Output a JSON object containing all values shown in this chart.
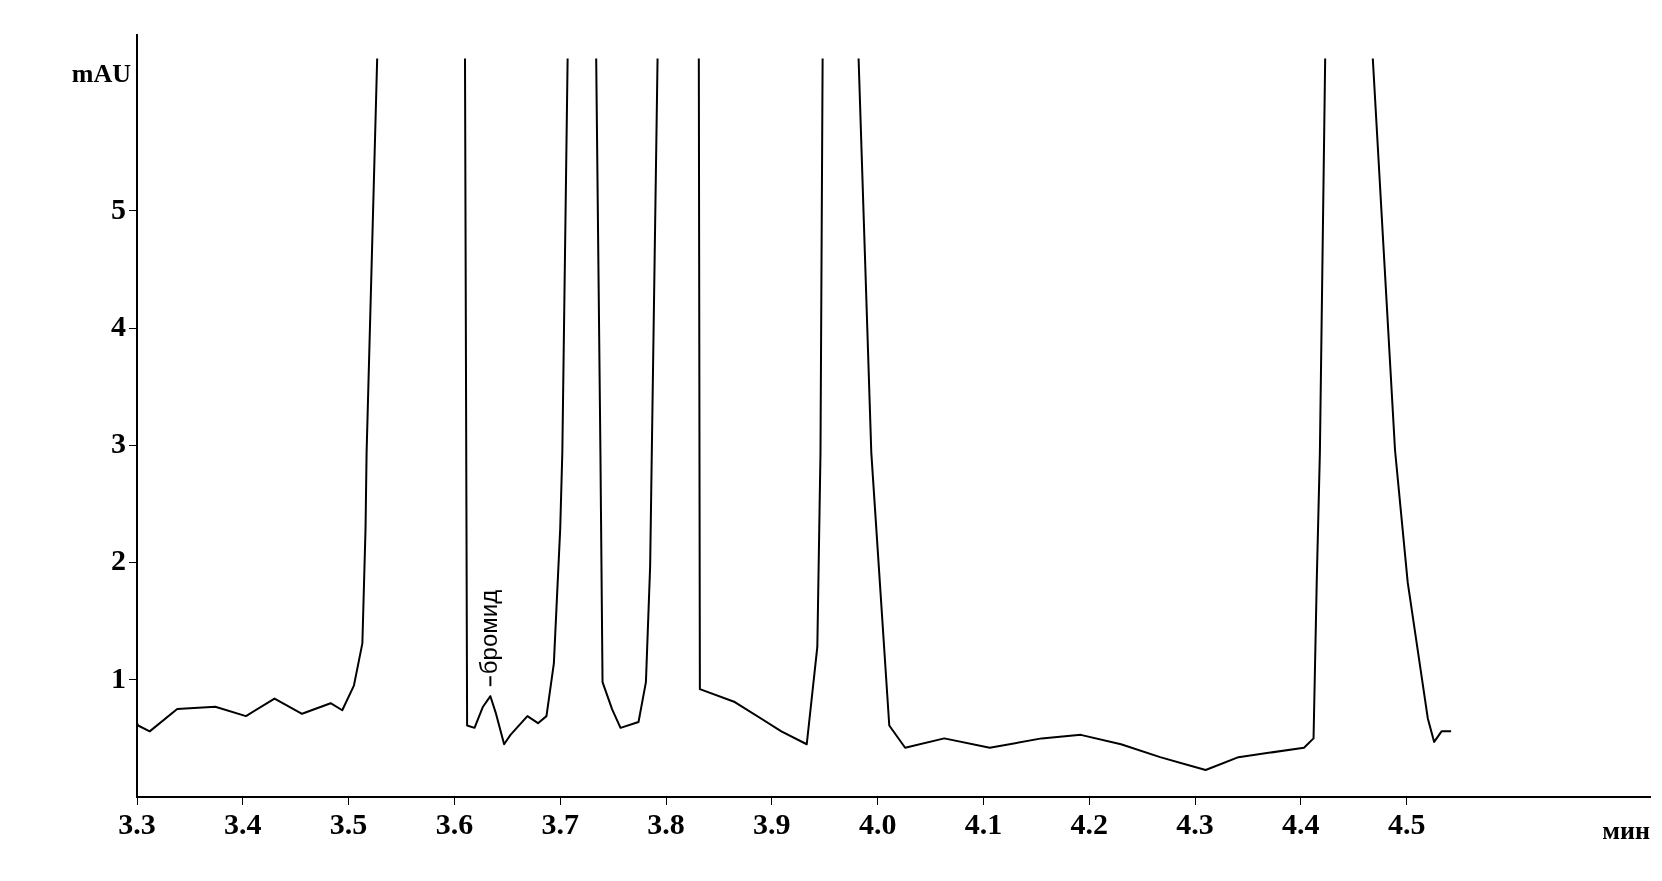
{
  "chart_data": {
    "type": "line",
    "xlabel": "мин",
    "ylabel": "mAU",
    "xlim": [
      3.3,
      4.73
    ],
    "ylim": [
      0,
      6.5
    ],
    "xticks": [
      3.3,
      3.4,
      3.5,
      3.6,
      3.7,
      3.8,
      3.9,
      {
        "value": 4,
        "label": "4.0"
      },
      4.1,
      4.2,
      4.3,
      4.4,
      4.5
    ],
    "yticks": [
      1,
      2,
      3,
      4,
      5
    ],
    "grid": false,
    "legend": false,
    "marker": "none",
    "line_style": "solid",
    "annotations": [
      {
        "text": "бромид",
        "x": 3.634,
        "y": 0.86
      }
    ],
    "series": [
      {
        "color": "#000000",
        "x": [
          3.3,
          3.301,
          3.312,
          3.338,
          3.374,
          3.403,
          3.43,
          3.456,
          3.483,
          3.494,
          3.505,
          3.513,
          3.516,
          3.517,
          3.527,
          3.568,
          3.61,
          3.612,
          3.619,
          3.627,
          3.634,
          3.639,
          3.647,
          3.653,
          3.669,
          3.679,
          3.687,
          3.694,
          3.7,
          3.702,
          3.707,
          3.72,
          3.734,
          3.738,
          3.74,
          3.749,
          3.757,
          3.774,
          3.781,
          3.785,
          3.792,
          3.811,
          3.831,
          3.832,
          3.865,
          3.909,
          3.933,
          3.943,
          3.946,
          3.948,
          3.965,
          3.982,
          3.994,
          4.011,
          4.026,
          4.063,
          4.106,
          4.155,
          4.192,
          4.23,
          4.267,
          4.31,
          4.341,
          4.403,
          4.412,
          4.415,
          4.418,
          4.423,
          4.445,
          4.468,
          4.489,
          4.501,
          4.52,
          4.526,
          4.533,
          4.542
        ],
        "values": [
          0.63,
          0.61,
          0.56,
          0.75,
          0.77,
          0.69,
          0.84,
          0.71,
          0.8,
          0.74,
          0.95,
          1.31,
          2.29,
          2.94,
          6.3,
          null,
          6.3,
          0.61,
          0.59,
          0.77,
          0.86,
          0.72,
          0.45,
          0.53,
          0.69,
          0.63,
          0.69,
          1.14,
          2.29,
          2.94,
          6.3,
          null,
          6.3,
          2.94,
          0.98,
          0.75,
          0.59,
          0.64,
          0.98,
          1.97,
          6.3,
          null,
          6.3,
          0.92,
          0.81,
          0.56,
          0.45,
          1.28,
          2.94,
          6.3,
          null,
          6.3,
          2.94,
          0.61,
          0.42,
          0.5,
          0.42,
          0.5,
          0.53,
          0.45,
          0.34,
          0.23,
          0.34,
          0.42,
          0.5,
          1.83,
          2.94,
          6.3,
          null,
          6.3,
          2.96,
          1.83,
          0.67,
          0.47,
          0.56,
          0.56
        ]
      }
    ]
  }
}
